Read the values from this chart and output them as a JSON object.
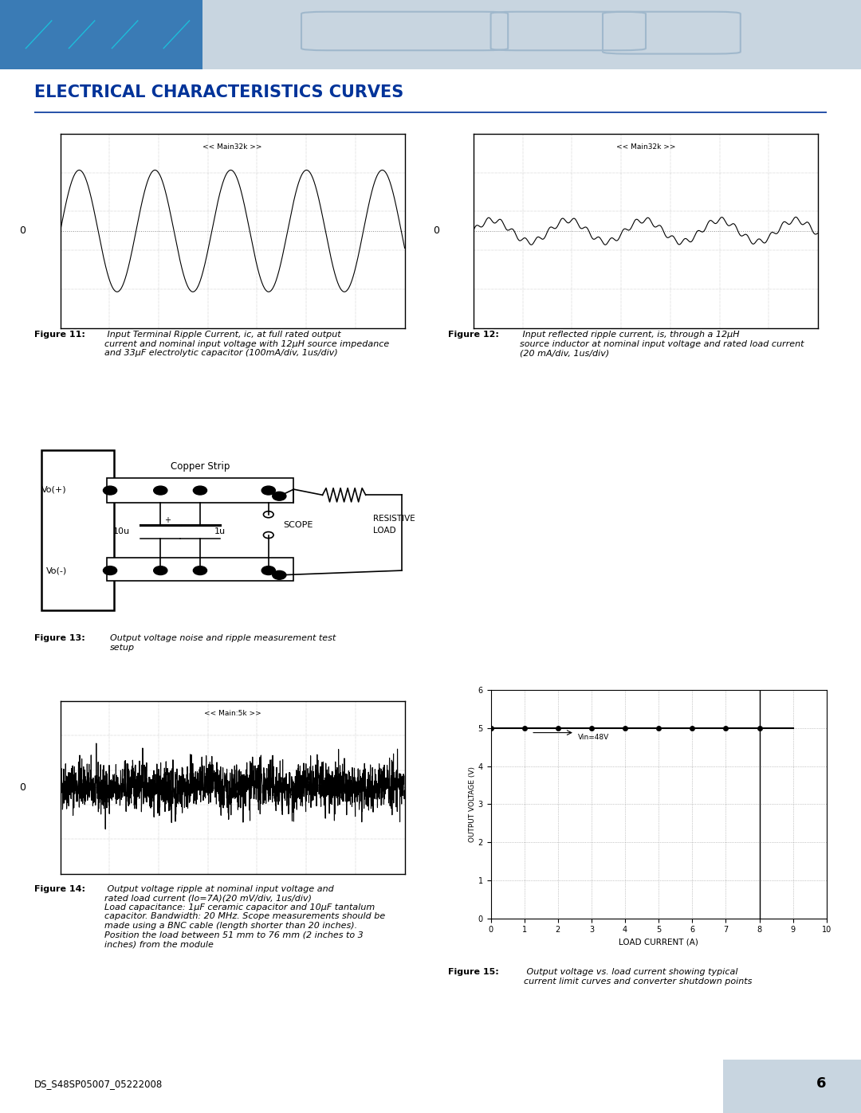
{
  "title": "ELECTRICAL CHARACTERISTICS CURVES",
  "header_bg_color": "#b8c8d8",
  "header_blue_color": "#4a90c0",
  "title_color": "#003399",
  "page_bg": "#ffffff",
  "fig11_label": "<< Main32k >>",
  "fig12_label": "<< Main32k >>",
  "fig14_label": "<< Main:5k >>",
  "fig13_caption_italic": "Output voltage noise and ripple measurement test\nsetup",
  "footer_text": "DS_S48SP05007_05222008",
  "page_number": "6",
  "circuit_copper_strip": "Copper Strip",
  "circuit_vo_plus": "Vo(+)",
  "circuit_vo_minus": "Vo(-)",
  "circuit_10u": "10u",
  "circuit_1u": "1u",
  "circuit_scope": "SCOPE",
  "circuit_load": "RESISTIVE\nLOAD",
  "fig15_ylabel": "OUTPUT VOLTAGE (V)",
  "fig15_xlabel": "LOAD CURRENT (A)",
  "fig15_ylim": [
    0.0,
    6.0
  ],
  "fig15_xlim": [
    0,
    10
  ],
  "fig15_yticks": [
    0.0,
    1.0,
    2.0,
    3.0,
    4.0,
    5.0,
    6.0
  ],
  "fig15_xticks": [
    0,
    1,
    2,
    3,
    4,
    5,
    6,
    7,
    8,
    9,
    10
  ],
  "fig15_vline_label": "Vin=48V",
  "fig15_line_x": [
    0,
    1,
    2,
    3,
    4,
    5,
    6,
    7,
    8,
    9
  ],
  "fig15_line_y": [
    5.0,
    5.0,
    5.0,
    5.0,
    5.0,
    5.0,
    5.0,
    5.0,
    5.0,
    5.0
  ],
  "fig15_dot_x": [
    0,
    1,
    2,
    3,
    4,
    5,
    6,
    7,
    8
  ],
  "fig15_dot_y": [
    5.0,
    5.0,
    5.0,
    5.0,
    5.0,
    5.0,
    5.0,
    5.0,
    5.0
  ]
}
